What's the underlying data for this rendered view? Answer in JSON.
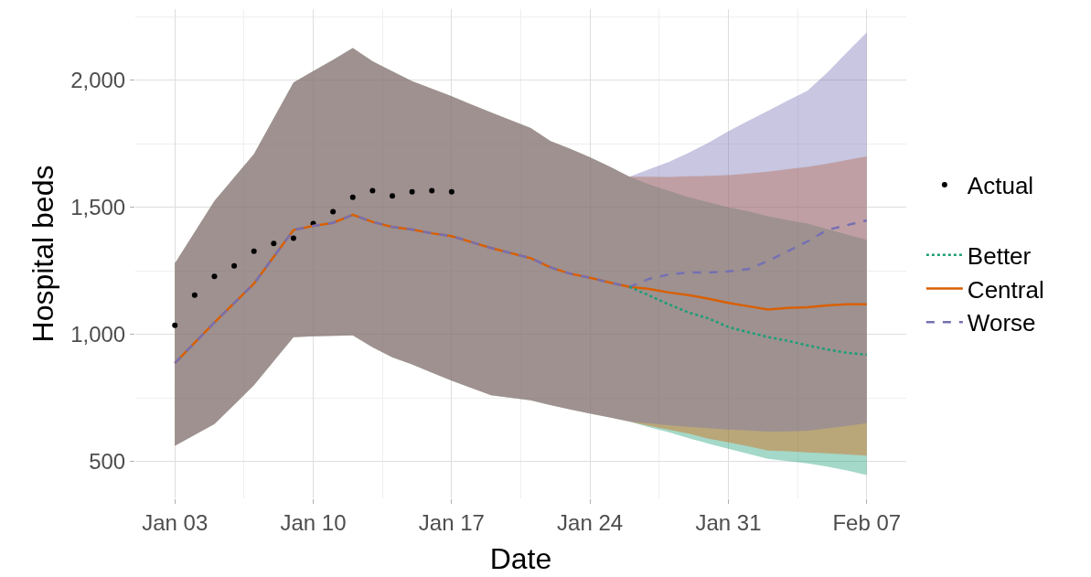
{
  "chart_data": {
    "type": "line",
    "xlabel": "Date",
    "ylabel": "Hospital beds",
    "x": [
      "--01-03",
      "--01-05",
      "--01-07",
      "--01-09",
      "--01-10",
      "--01-11",
      "--01-12",
      "--01-13",
      "--01-14",
      "--01-15",
      "--01-16",
      "--01-17",
      "--01-19",
      "--01-21",
      "--01-22",
      "--01-23",
      "--01-24",
      "--01-25",
      "--01-26",
      "--01-27",
      "--01-28",
      "--01-29",
      "--01-30",
      "--01-31",
      "--02-01",
      "--02-02",
      "--02-03",
      "--02-04",
      "--02-05",
      "--02-06",
      "--02-07"
    ],
    "series": [
      {
        "name": "Actual",
        "type": "scatter",
        "marker": "circle",
        "color": "#000000",
        "x": [
          "--01-03",
          "--01-04",
          "--01-05",
          "--01-06",
          "--01-07",
          "--01-08",
          "--01-09",
          "--01-10",
          "--01-11",
          "--01-12",
          "--01-13",
          "--01-14",
          "--01-15",
          "--01-16",
          "--01-17"
        ],
        "values": [
          1036,
          1155,
          1228,
          1270,
          1327,
          1358,
          1379,
          1436,
          1483,
          1540,
          1566,
          1545,
          1561,
          1566,
          1561
        ]
      },
      {
        "name": "Better",
        "color": "#1b9e77",
        "line_style": "dotted",
        "values": [
          null,
          null,
          null,
          null,
          null,
          null,
          null,
          null,
          null,
          null,
          null,
          null,
          null,
          null,
          null,
          null,
          null,
          null,
          1187,
          1153,
          1118,
          1086,
          1063,
          1029,
          1009,
          990,
          975,
          957,
          941,
          928,
          920
        ],
        "lower": [
          562,
          647,
          800,
          989,
          993,
          995,
          996,
          950,
          910,
          882,
          850,
          818,
          761,
          741,
          722,
          705,
          689,
          673,
          657,
          635,
          615,
          592,
          570,
          550,
          530,
          511,
          502,
          493,
          480,
          465,
          447
        ],
        "upper": [
          1280,
          1525,
          1710,
          1991,
          2036,
          2080,
          2127,
          2075,
          2035,
          1997,
          1967,
          1937,
          1873,
          1812,
          1761,
          1730,
          1697,
          1660,
          1621,
          1590,
          1565,
          1540,
          1520,
          1500,
          1485,
          1465,
          1450,
          1436,
          1415,
          1393,
          1372
        ]
      },
      {
        "name": "Central",
        "color": "#d95f02",
        "line_style": "solid",
        "values": [
          887,
          1047,
          1200,
          1411,
          1427,
          1439,
          1471,
          1443,
          1423,
          1413,
          1398,
          1387,
          1340,
          1300,
          1264,
          1239,
          1223,
          1204,
          1187,
          1179,
          1165,
          1155,
          1140,
          1124,
          1111,
          1098,
          1104,
          1107,
          1114,
          1119,
          1119
        ],
        "lower": [
          562,
          647,
          800,
          989,
          993,
          995,
          996,
          950,
          910,
          882,
          850,
          818,
          761,
          741,
          722,
          705,
          689,
          673,
          657,
          640,
          625,
          610,
          590,
          575,
          560,
          543,
          540,
          536,
          532,
          528,
          523
        ],
        "upper": [
          1280,
          1525,
          1710,
          1991,
          2036,
          2080,
          2127,
          2075,
          2035,
          1997,
          1967,
          1937,
          1873,
          1812,
          1761,
          1730,
          1697,
          1660,
          1621,
          1621,
          1620,
          1622,
          1624,
          1627,
          1633,
          1640,
          1650,
          1659,
          1672,
          1686,
          1701
        ]
      },
      {
        "name": "Worse",
        "color": "#7570b3",
        "line_style": "dashed",
        "values": [
          887,
          1047,
          1200,
          1411,
          1427,
          1439,
          1471,
          1443,
          1423,
          1413,
          1398,
          1387,
          1340,
          1300,
          1264,
          1239,
          1223,
          1204,
          1187,
          1219,
          1236,
          1244,
          1244,
          1248,
          1257,
          1289,
          1327,
          1366,
          1411,
          1430,
          1449
        ],
        "lower": [
          562,
          647,
          800,
          989,
          993,
          995,
          996,
          950,
          910,
          882,
          850,
          818,
          761,
          741,
          722,
          705,
          689,
          673,
          657,
          650,
          643,
          637,
          631,
          626,
          622,
          618,
          619,
          621,
          630,
          640,
          651
        ],
        "upper": [
          1280,
          1525,
          1710,
          1991,
          2036,
          2080,
          2127,
          2075,
          2035,
          1997,
          1967,
          1937,
          1873,
          1812,
          1761,
          1730,
          1697,
          1660,
          1621,
          1650,
          1679,
          1715,
          1755,
          1800,
          1840,
          1880,
          1920,
          1959,
          2030,
          2110,
          2188
        ]
      }
    ],
    "xlim": [
      "--01-01",
      "--02-09"
    ],
    "xticks": [
      {
        "value": "--01-03",
        "label": "Jan 03"
      },
      {
        "value": "--01-10",
        "label": "Jan 10"
      },
      {
        "value": "--01-17",
        "label": "Jan 17"
      },
      {
        "value": "--01-24",
        "label": "Jan 24"
      },
      {
        "value": "--01-31",
        "label": "Jan 31"
      },
      {
        "value": "--02-07",
        "label": "Feb 07"
      }
    ],
    "ylim": [
      355,
      2280
    ],
    "yticks": [
      {
        "value": 500,
        "label": "500"
      },
      {
        "value": 1000,
        "label": "1,000"
      },
      {
        "value": 1500,
        "label": "1,500"
      },
      {
        "value": 2000,
        "label": "2,000"
      }
    ],
    "grid": true,
    "legend": "right"
  }
}
